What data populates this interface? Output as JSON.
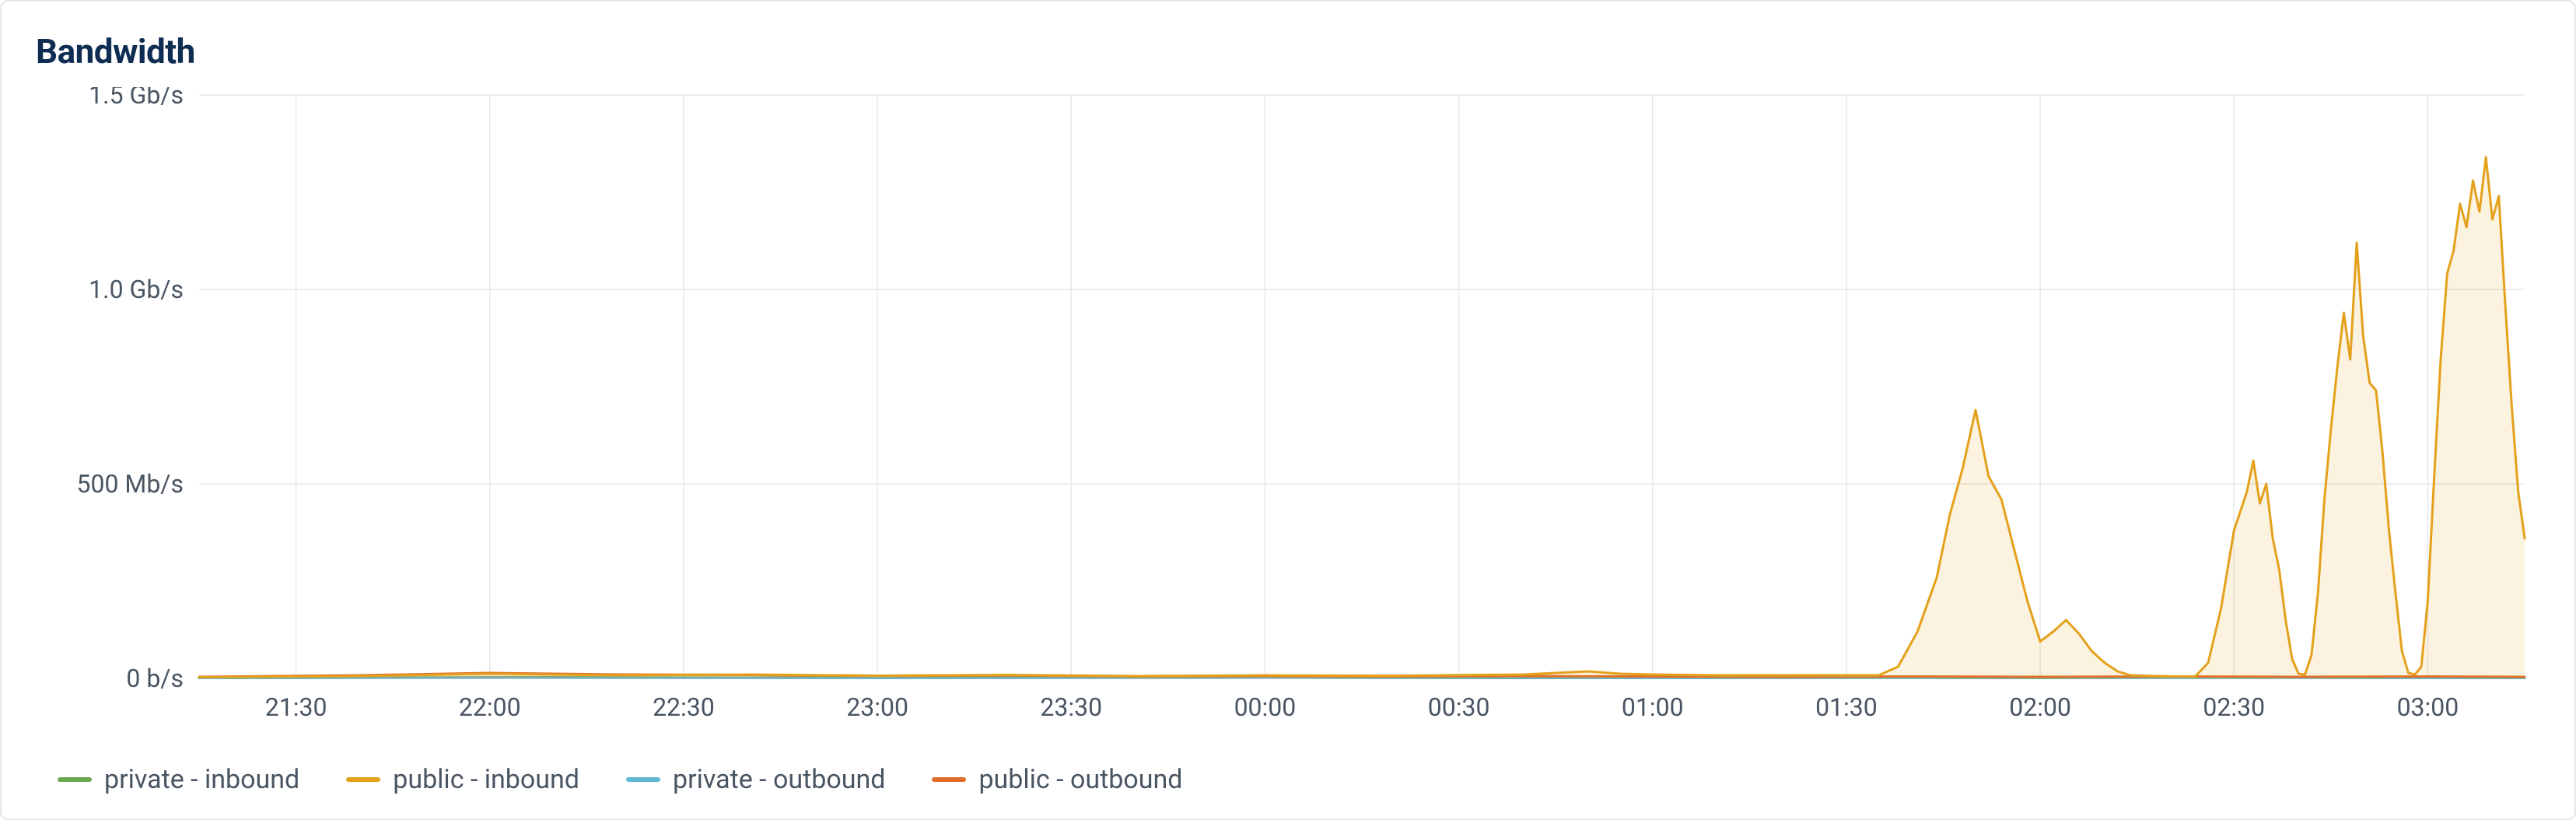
{
  "title": "Bandwidth",
  "chart": {
    "type": "area",
    "background_color": "#ffffff",
    "panel_border_color": "#e3e6ea",
    "grid_color": "#e6e8ec",
    "axis_text_color": "#4a5563",
    "title_color": "#0f2d52",
    "label_fontsize": 32,
    "title_fontsize": 44,
    "x": {
      "min_min": 1275,
      "max_min": 1635,
      "ticks_min": [
        1290,
        1320,
        1350,
        1380,
        1410,
        1440,
        1470,
        1500,
        1530,
        1560,
        1590,
        1620
      ],
      "tick_labels": [
        "21:30",
        "22:00",
        "22:30",
        "23:00",
        "23:30",
        "00:00",
        "00:30",
        "01:00",
        "01:30",
        "02:00",
        "02:30",
        "03:00"
      ]
    },
    "y": {
      "min": 0,
      "max": 1500,
      "ticks": [
        0,
        500,
        1000,
        1500
      ],
      "tick_labels": [
        "0 b/s",
        "500 Mb/s",
        "1.0 Gb/s",
        "1.5 Gb/s"
      ]
    },
    "series": [
      {
        "name": "private - inbound",
        "color": "#6aa84f",
        "fill_color": "rgba(106,168,79,0.12)",
        "line_width": 3,
        "points": [
          [
            1275,
            1
          ],
          [
            1300,
            2
          ],
          [
            1330,
            3
          ],
          [
            1360,
            2
          ],
          [
            1400,
            3
          ],
          [
            1440,
            2
          ],
          [
            1480,
            1
          ],
          [
            1520,
            2
          ],
          [
            1560,
            1
          ],
          [
            1600,
            2
          ],
          [
            1635,
            1
          ]
        ]
      },
      {
        "name": "public - inbound",
        "color": "#e4a11b",
        "fill_color": "rgba(228,161,27,0.14)",
        "line_width": 3,
        "points": [
          [
            1275,
            3
          ],
          [
            1300,
            6
          ],
          [
            1320,
            12
          ],
          [
            1340,
            8
          ],
          [
            1360,
            10
          ],
          [
            1380,
            7
          ],
          [
            1400,
            9
          ],
          [
            1420,
            6
          ],
          [
            1440,
            8
          ],
          [
            1460,
            7
          ],
          [
            1480,
            10
          ],
          [
            1490,
            18
          ],
          [
            1495,
            12
          ],
          [
            1500,
            10
          ],
          [
            1510,
            8
          ],
          [
            1535,
            8
          ],
          [
            1538,
            30
          ],
          [
            1541,
            120
          ],
          [
            1544,
            260
          ],
          [
            1546,
            420
          ],
          [
            1548,
            540
          ],
          [
            1550,
            690
          ],
          [
            1552,
            520
          ],
          [
            1554,
            460
          ],
          [
            1556,
            330
          ],
          [
            1558,
            200
          ],
          [
            1560,
            95
          ],
          [
            1562,
            120
          ],
          [
            1564,
            150
          ],
          [
            1566,
            115
          ],
          [
            1568,
            70
          ],
          [
            1570,
            40
          ],
          [
            1572,
            18
          ],
          [
            1574,
            8
          ],
          [
            1578,
            6
          ],
          [
            1582,
            5
          ],
          [
            1584,
            5
          ],
          [
            1586,
            40
          ],
          [
            1588,
            180
          ],
          [
            1590,
            380
          ],
          [
            1592,
            480
          ],
          [
            1593,
            560
          ],
          [
            1594,
            450
          ],
          [
            1595,
            500
          ],
          [
            1596,
            360
          ],
          [
            1597,
            280
          ],
          [
            1598,
            150
          ],
          [
            1599,
            50
          ],
          [
            1600,
            12
          ],
          [
            1601,
            10
          ],
          [
            1602,
            60
          ],
          [
            1603,
            220
          ],
          [
            1604,
            460
          ],
          [
            1605,
            640
          ],
          [
            1606,
            800
          ],
          [
            1607,
            940
          ],
          [
            1608,
            820
          ],
          [
            1609,
            1120
          ],
          [
            1610,
            880
          ],
          [
            1611,
            760
          ],
          [
            1612,
            740
          ],
          [
            1613,
            580
          ],
          [
            1614,
            380
          ],
          [
            1615,
            220
          ],
          [
            1616,
            70
          ],
          [
            1617,
            14
          ],
          [
            1618,
            10
          ],
          [
            1619,
            30
          ],
          [
            1620,
            200
          ],
          [
            1621,
            520
          ],
          [
            1622,
            820
          ],
          [
            1623,
            1040
          ],
          [
            1624,
            1100
          ],
          [
            1625,
            1220
          ],
          [
            1626,
            1160
          ],
          [
            1627,
            1280
          ],
          [
            1628,
            1200
          ],
          [
            1629,
            1340
          ],
          [
            1630,
            1180
          ],
          [
            1631,
            1240
          ],
          [
            1632,
            960
          ],
          [
            1633,
            700
          ],
          [
            1634,
            480
          ],
          [
            1635,
            360
          ]
        ]
      },
      {
        "name": "private - outbound",
        "color": "#5fb8d6",
        "fill_color": "rgba(95,184,214,0.12)",
        "line_width": 3,
        "points": [
          [
            1275,
            1
          ],
          [
            1320,
            2
          ],
          [
            1380,
            1
          ],
          [
            1440,
            2
          ],
          [
            1500,
            1
          ],
          [
            1560,
            2
          ],
          [
            1620,
            1
          ],
          [
            1635,
            1
          ]
        ]
      },
      {
        "name": "public - outbound",
        "color": "#e06b2a",
        "fill_color": "rgba(224,107,42,0.12)",
        "line_width": 3,
        "points": [
          [
            1275,
            4
          ],
          [
            1300,
            8
          ],
          [
            1320,
            14
          ],
          [
            1340,
            10
          ],
          [
            1360,
            9
          ],
          [
            1380,
            7
          ],
          [
            1400,
            8
          ],
          [
            1420,
            5
          ],
          [
            1440,
            6
          ],
          [
            1460,
            5
          ],
          [
            1480,
            6
          ],
          [
            1500,
            5
          ],
          [
            1520,
            4
          ],
          [
            1540,
            5
          ],
          [
            1560,
            4
          ],
          [
            1580,
            5
          ],
          [
            1600,
            4
          ],
          [
            1620,
            5
          ],
          [
            1635,
            4
          ]
        ]
      }
    ],
    "legend": [
      {
        "label": "private - inbound",
        "color": "#6aa84f"
      },
      {
        "label": "public - inbound",
        "color": "#e4a11b"
      },
      {
        "label": "private - outbound",
        "color": "#5fb8d6"
      },
      {
        "label": "public - outbound",
        "color": "#e06b2a"
      }
    ]
  }
}
